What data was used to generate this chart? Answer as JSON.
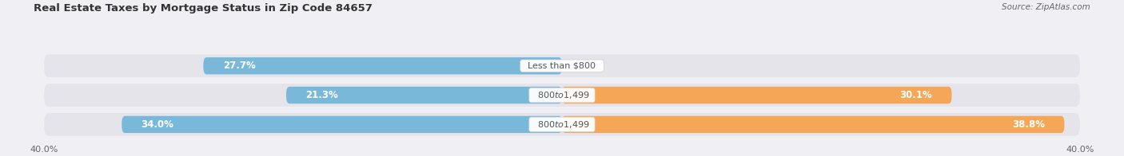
{
  "title": "Real Estate Taxes by Mortgage Status in Zip Code 84657",
  "source": "Source: ZipAtlas.com",
  "rows": [
    {
      "label": "Less than $800",
      "without_mortgage": 27.7,
      "with_mortgage": 0.0
    },
    {
      "label": "$800 to $1,499",
      "without_mortgage": 21.3,
      "with_mortgage": 30.1
    },
    {
      "label": "$800 to $1,499",
      "without_mortgage": 34.0,
      "with_mortgage": 38.8
    }
  ],
  "axis_max": 40.0,
  "axis_label": "40.0%",
  "color_without": "#7ab8d9",
  "color_with": "#f5a757",
  "bg_row_color": "#e4e4ea",
  "bg_fig_color": "#f0f0f4",
  "label_color_white": "#ffffff",
  "label_color_dark": "#555555",
  "title_fontsize": 9.5,
  "source_fontsize": 7.5,
  "bar_fontsize": 8.5,
  "legend_fontsize": 8.5,
  "axis_tick_fontsize": 8
}
